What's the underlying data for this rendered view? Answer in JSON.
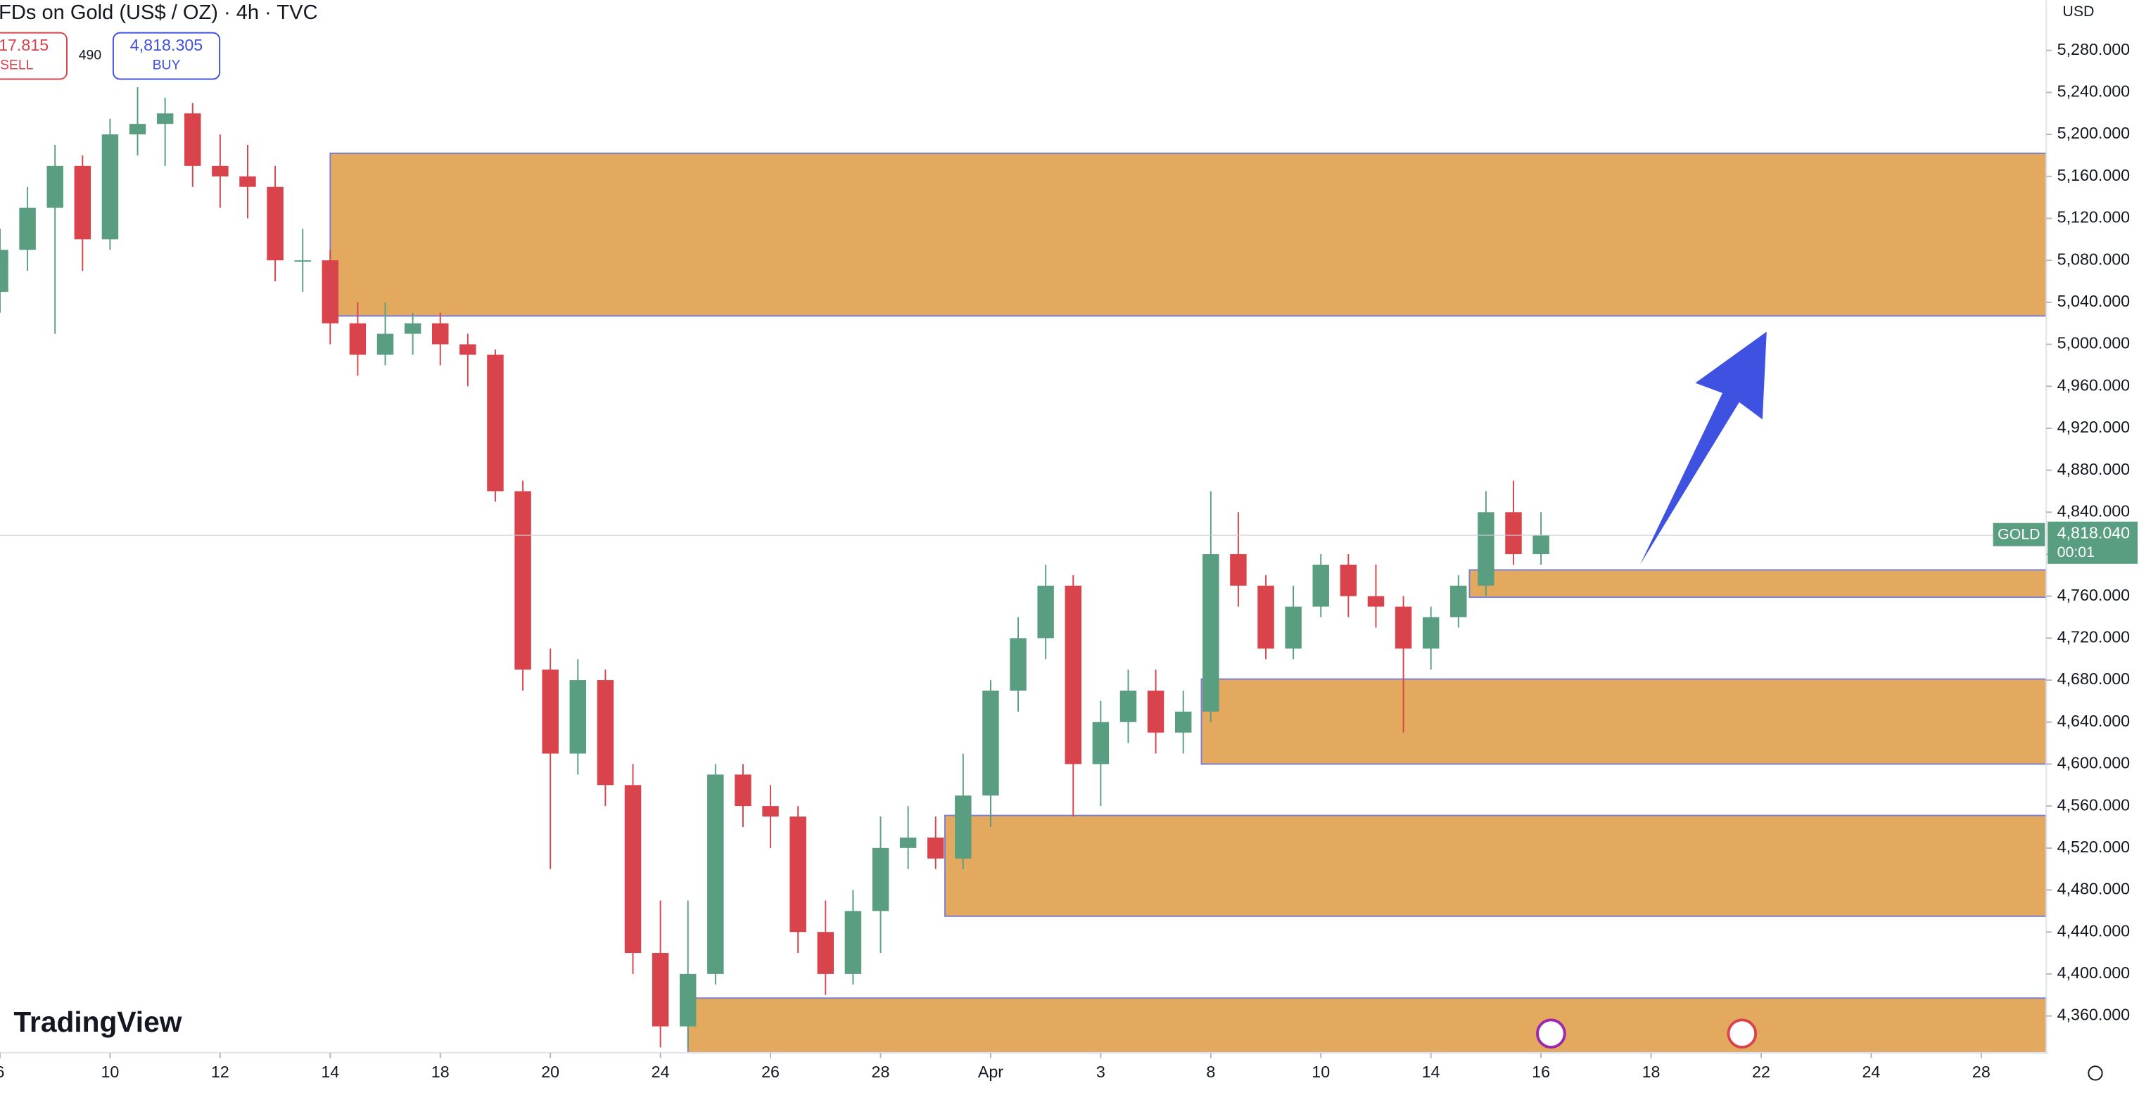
{
  "header": {
    "title": "FDs on Gold (US$ / OZ) · 4h · TVC",
    "sell_price": "17.815",
    "sell_label": "SELL",
    "spread": "490",
    "buy_price": "4,818.305",
    "buy_label": "BUY",
    "currency": "USD",
    "brand": "TradingView"
  },
  "chart_data": {
    "type": "candlestick",
    "x": [
      0,
      0.5,
      1,
      1.5,
      2,
      2.5,
      3,
      3.5,
      4,
      4.5,
      5,
      5.5,
      6,
      6.5,
      7,
      7.5,
      8,
      8.5,
      9,
      9.5,
      10,
      10.5,
      11,
      11.5,
      12,
      12.5,
      13,
      13.5,
      14,
      14.5,
      15,
      15.5,
      16,
      16.5,
      17,
      17.5,
      18,
      18.5,
      19,
      19.5,
      20,
      20.5,
      21,
      21.5,
      22,
      22.5,
      23,
      23.5,
      24,
      24.5,
      25,
      25.5,
      26,
      26.5,
      27,
      27.5,
      28
    ],
    "open": [
      5050,
      5090,
      5130,
      5170,
      5100,
      5200,
      5210,
      5220,
      5170,
      5160,
      5150,
      5080,
      5080,
      5020,
      4990,
      5010,
      5020,
      5000,
      4990,
      4860,
      4690,
      4610,
      4680,
      4580,
      4420,
      4350,
      4400,
      4590,
      4560,
      4550,
      4440,
      4400,
      4460,
      4520,
      4530,
      4510,
      4570,
      4670,
      4720,
      4770,
      4600,
      4640,
      4670,
      4630,
      4650,
      4800,
      4770,
      4710,
      4750,
      4790,
      4760,
      4750,
      4710,
      4740,
      4770,
      4840,
      4800
    ],
    "high": [
      5110,
      5150,
      5190,
      5180,
      5215,
      5245,
      5235,
      5230,
      5200,
      5190,
      5170,
      5110,
      5090,
      5040,
      5040,
      5030,
      5030,
      5010,
      4995,
      4870,
      4710,
      4700,
      4690,
      4600,
      4470,
      4470,
      4600,
      4600,
      4580,
      4560,
      4470,
      4480,
      4550,
      4560,
      4550,
      4610,
      4680,
      4740,
      4790,
      4780,
      4660,
      4690,
      4690,
      4670,
      4860,
      4840,
      4780,
      4770,
      4800,
      4800,
      4790,
      4760,
      4750,
      4780,
      4860,
      4870,
      4840
    ],
    "low": [
      5030,
      5070,
      5010,
      5070,
      5090,
      5180,
      5170,
      5150,
      5130,
      5120,
      5060,
      5050,
      5000,
      4970,
      4980,
      4990,
      4980,
      4960,
      4850,
      4670,
      4500,
      4590,
      4560,
      4400,
      4330,
      4330,
      4390,
      4540,
      4520,
      4420,
      4380,
      4390,
      4420,
      4500,
      4500,
      4500,
      4540,
      4650,
      4700,
      4550,
      4560,
      4620,
      4610,
      4610,
      4640,
      4750,
      4700,
      4700,
      4740,
      4740,
      4730,
      4630,
      4690,
      4730,
      4760,
      4790,
      4790
    ],
    "close": [
      5090,
      5130,
      5170,
      5100,
      5200,
      5210,
      5220,
      5170,
      5160,
      5150,
      5080,
      5080,
      5020,
      4990,
      5010,
      5020,
      5000,
      4990,
      4860,
      4690,
      4610,
      4680,
      4580,
      4420,
      4350,
      4400,
      4590,
      4560,
      4550,
      4440,
      4400,
      4460,
      4520,
      4530,
      4510,
      4570,
      4670,
      4720,
      4770,
      4600,
      4640,
      4670,
      4630,
      4650,
      4800,
      4770,
      4710,
      4750,
      4790,
      4760,
      4750,
      4710,
      4740,
      4770,
      4840,
      4800,
      4818.04
    ],
    "up_color": "#5a9e82",
    "down_color": "#d9434b",
    "xlim": [
      0,
      37.18
    ],
    "ylim": [
      4325,
      5328
    ],
    "xticks": [
      {
        "value": 0,
        "label": "6"
      },
      {
        "value": 2,
        "label": "10"
      },
      {
        "value": 4,
        "label": "12"
      },
      {
        "value": 6,
        "label": "14"
      },
      {
        "value": 8,
        "label": "18"
      },
      {
        "value": 10,
        "label": "20"
      },
      {
        "value": 12,
        "label": "24"
      },
      {
        "value": 14,
        "label": "26"
      },
      {
        "value": 16,
        "label": "28"
      },
      {
        "value": 18,
        "label": "Apr"
      },
      {
        "value": 20,
        "label": "3"
      },
      {
        "value": 22,
        "label": "8"
      },
      {
        "value": 24,
        "label": "10"
      },
      {
        "value": 26,
        "label": "14"
      },
      {
        "value": 28,
        "label": "16"
      },
      {
        "value": 30,
        "label": "18"
      },
      {
        "value": 32,
        "label": "22"
      },
      {
        "value": 34,
        "label": "24"
      },
      {
        "value": 36,
        "label": "28"
      }
    ],
    "yticks": [
      {
        "value": 5280,
        "label": "5,280.000"
      },
      {
        "value": 5240,
        "label": "5,240.000"
      },
      {
        "value": 5200,
        "label": "5,200.000"
      },
      {
        "value": 5160,
        "label": "5,160.000"
      },
      {
        "value": 5120,
        "label": "5,120.000"
      },
      {
        "value": 5080,
        "label": "5,080.000"
      },
      {
        "value": 5040,
        "label": "5,040.000"
      },
      {
        "value": 5000,
        "label": "5,000.000"
      },
      {
        "value": 4960,
        "label": "4,960.000"
      },
      {
        "value": 4920,
        "label": "4,920.000"
      },
      {
        "value": 4880,
        "label": "4,880.000"
      },
      {
        "value": 4840,
        "label": "4,840.000"
      },
      {
        "value": 4800,
        "label": "4,800.000"
      },
      {
        "value": 4760,
        "label": "4,760.000"
      },
      {
        "value": 4720,
        "label": "4,720.000"
      },
      {
        "value": 4680,
        "label": "4,680.000"
      },
      {
        "value": 4640,
        "label": "4,640.000"
      },
      {
        "value": 4600,
        "label": "4,600.000"
      },
      {
        "value": 4560,
        "label": "4,560.000"
      },
      {
        "value": 4520,
        "label": "4,520.000"
      },
      {
        "value": 4480,
        "label": "4,480.000"
      },
      {
        "value": 4440,
        "label": "4,440.000"
      },
      {
        "value": 4400,
        "label": "4,400.000"
      },
      {
        "value": 4360,
        "label": "4,360.000"
      }
    ],
    "zones": [
      {
        "x_start": 6,
        "top": 5182,
        "bottom": 5027
      },
      {
        "x_start": 26.7,
        "top": 4785,
        "bottom": 4759
      },
      {
        "x_start": 21.83,
        "top": 4681,
        "bottom": 4600
      },
      {
        "x_start": 17.17,
        "top": 4551,
        "bottom": 4455
      },
      {
        "x_start": 12.5,
        "top": 4377,
        "bottom": 4325
      }
    ],
    "zone_color": "#e3a95f",
    "arrow": {
      "from": [
        29.8,
        4790
      ],
      "to": [
        32.1,
        5012
      ],
      "color": "#3f51e0"
    },
    "last_price": {
      "symbol": "GOLD",
      "value": 4818.04,
      "label": "4,818.040",
      "countdown": "00:01"
    }
  }
}
